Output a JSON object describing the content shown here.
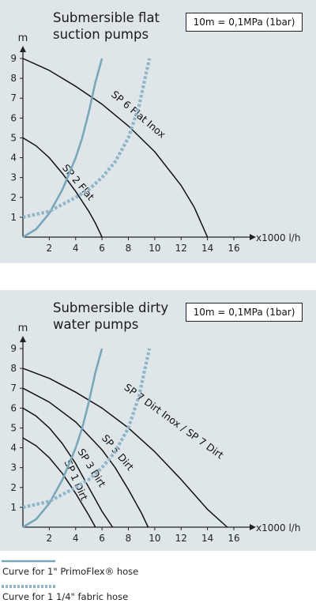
{
  "chart_data": [
    {
      "type": "line",
      "title": "Submersible flat suction pumps",
      "note": "10m = 0,1MPa (1bar)",
      "ylabel": "m",
      "xlabel": "x1000 l/h",
      "xlim": [
        0,
        16
      ],
      "ylim": [
        0,
        9
      ],
      "xticks": [
        2,
        4,
        6,
        8,
        10,
        12,
        14,
        16
      ],
      "yticks": [
        1,
        2,
        3,
        4,
        5,
        6,
        7,
        8,
        9
      ],
      "grid": false,
      "series": [
        {
          "name": "SP 6 Flat Inox",
          "kind": "pump",
          "label_at": [
            8.6,
            6.05
          ],
          "label_angle": 40,
          "x": [
            0,
            2,
            4,
            6,
            8,
            10,
            12,
            13,
            14
          ],
          "y": [
            9,
            8.4,
            7.6,
            6.7,
            5.6,
            4.3,
            2.6,
            1.5,
            0
          ]
        },
        {
          "name": "SP 2 Flat",
          "kind": "pump",
          "label_at": [
            4.0,
            2.65
          ],
          "label_angle": 50,
          "x": [
            0,
            1,
            2,
            3,
            4,
            5,
            5.5,
            6
          ],
          "y": [
            5,
            4.6,
            4.0,
            3.2,
            2.3,
            1.3,
            0.7,
            0
          ]
        },
        {
          "name": "",
          "kind": "hose-1in",
          "x": [
            0,
            1,
            2,
            3,
            4,
            4.5,
            5,
            5.5,
            6
          ],
          "y": [
            0,
            0.4,
            1.2,
            2.4,
            4.0,
            5.0,
            6.3,
            7.8,
            9
          ]
        },
        {
          "name": "",
          "kind": "hose-1-1-4in",
          "x": [
            0,
            2,
            4,
            5,
            6,
            7,
            8,
            8.8,
            9.6
          ],
          "y": [
            1,
            1.3,
            2.0,
            2.4,
            3.0,
            3.8,
            5.0,
            6.6,
            9
          ]
        }
      ]
    },
    {
      "type": "line",
      "title": "Submersible dirty water pumps",
      "note": "10m = 0,1MPa (1bar)",
      "ylabel": "m",
      "xlabel": "x1000 l/h",
      "xlim": [
        0,
        16
      ],
      "ylim": [
        0,
        9
      ],
      "xticks": [
        2,
        4,
        6,
        8,
        10,
        12,
        14,
        16
      ],
      "yticks": [
        1,
        2,
        3,
        4,
        5,
        6,
        7,
        8,
        9
      ],
      "grid": false,
      "series": [
        {
          "name": "SP 7 Dirt Inox / SP 7 Dirt",
          "kind": "pump",
          "label_at": [
            11.3,
            5.2
          ],
          "label_angle": 36,
          "x": [
            0,
            2,
            4,
            6,
            8,
            10,
            12,
            14,
            15.5
          ],
          "y": [
            8,
            7.5,
            6.8,
            6.0,
            5.0,
            3.8,
            2.4,
            0.9,
            0
          ]
        },
        {
          "name": "SP 5 Dirt",
          "kind": "pump",
          "label_at": [
            7.0,
            3.65
          ],
          "label_angle": 50,
          "x": [
            0,
            2,
            4,
            6,
            7,
            8,
            9,
            9.5
          ],
          "y": [
            7,
            6.3,
            5.3,
            3.9,
            3.0,
            1.9,
            0.7,
            0
          ]
        },
        {
          "name": "SP 3 Dirt",
          "kind": "pump",
          "label_at": [
            5.0,
            2.9
          ],
          "label_angle": 58,
          "x": [
            0,
            1,
            2,
            3,
            4,
            5,
            6,
            6.8
          ],
          "y": [
            6,
            5.6,
            5.0,
            4.2,
            3.2,
            2.0,
            0.8,
            0
          ]
        },
        {
          "name": "SP 1 Dirt",
          "kind": "pump",
          "label_at": [
            3.8,
            2.3
          ],
          "label_angle": 66,
          "x": [
            0,
            1,
            2,
            3,
            4,
            5,
            5.5
          ],
          "y": [
            4.5,
            4.1,
            3.5,
            2.7,
            1.7,
            0.6,
            0
          ]
        },
        {
          "name": "",
          "kind": "hose-1in",
          "x": [
            0,
            1,
            2,
            3,
            4,
            4.5,
            5,
            5.5,
            6
          ],
          "y": [
            0,
            0.4,
            1.2,
            2.4,
            4.0,
            5.0,
            6.3,
            7.8,
            9
          ]
        },
        {
          "name": "",
          "kind": "hose-1-1-4in",
          "x": [
            0,
            2,
            4,
            5,
            6,
            7,
            8,
            8.8,
            9.6
          ],
          "y": [
            1,
            1.3,
            2.0,
            2.4,
            3.0,
            3.8,
            5.0,
            6.6,
            9
          ]
        }
      ]
    }
  ],
  "legend": [
    {
      "label": "Curve for 1\" PrimoFlex® hose",
      "style": "solid",
      "color": "#7aa7b8"
    },
    {
      "label": "Curve for 1 1/4\" fabric hose",
      "style": "dotted",
      "color": "#8fb5c6"
    }
  ],
  "colors": {
    "panel_bg": "#dfe6ea",
    "pump_curve": "#111111",
    "hose_1in": "#7aa7b8",
    "hose_1_1_4in": "#8fb5c6"
  }
}
